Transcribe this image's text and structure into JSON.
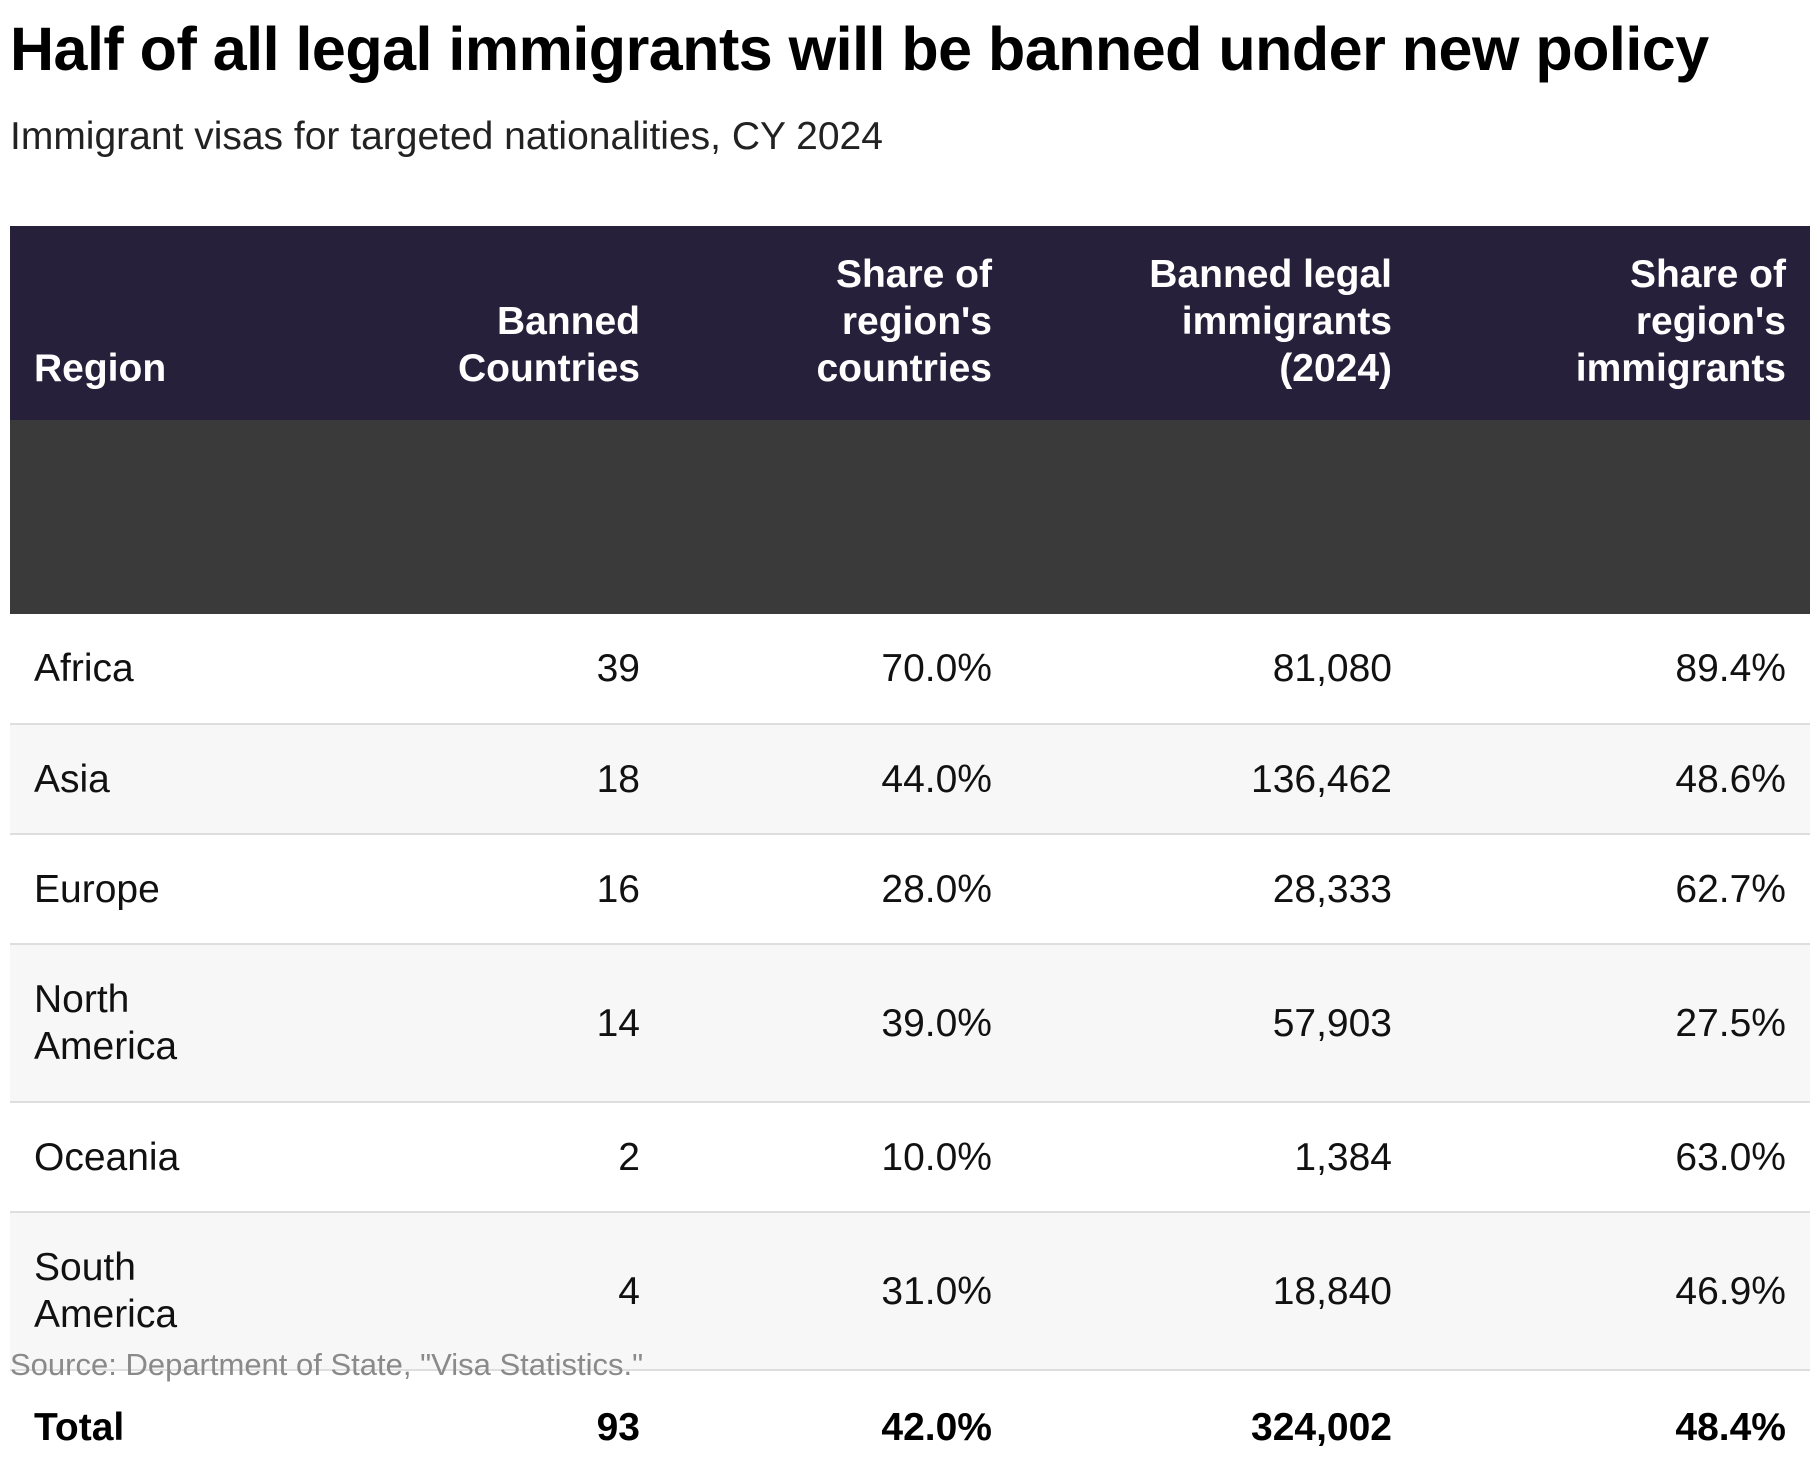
{
  "chart_data": {
    "type": "table",
    "title": "Half of all legal immigrants will be banned under new policy",
    "subtitle": "Immigrant visas for targeted nationalities, CY 2024",
    "columns": [
      "Region",
      "Banned Countries",
      "Share of region's countries",
      "Banned legal immigrants (2024)",
      "Share of region's immigrants"
    ],
    "rows": [
      {
        "region": "Africa",
        "banned_countries": "39",
        "share_countries": "70.0%",
        "banned_immigrants": "81,080",
        "share_immigrants": "89.4%"
      },
      {
        "region": "Asia",
        "banned_countries": "18",
        "share_countries": "44.0%",
        "banned_immigrants": "136,462",
        "share_immigrants": "48.6%"
      },
      {
        "region": "Europe",
        "banned_countries": "16",
        "share_countries": "28.0%",
        "banned_immigrants": "28,333",
        "share_immigrants": "62.7%"
      },
      {
        "region": "North America",
        "banned_countries": "14",
        "share_countries": "39.0%",
        "banned_immigrants": "57,903",
        "share_immigrants": "27.5%"
      },
      {
        "region": "Oceania",
        "banned_countries": "2",
        "share_countries": "10.0%",
        "banned_immigrants": "1,384",
        "share_immigrants": "63.0%"
      },
      {
        "region": "South America",
        "banned_countries": "4",
        "share_countries": "31.0%",
        "banned_immigrants": "18,840",
        "share_immigrants": "46.9%"
      }
    ],
    "total": {
      "region": "Total",
      "banned_countries": "93",
      "share_countries": "42.0%",
      "banned_immigrants": "324,002",
      "share_immigrants": "48.4%"
    },
    "source": "Source: Department of State, \"Visa Statistics.\""
  },
  "colors": {
    "header_background": "#26203a",
    "header_text": "#ffffff",
    "row_stripe": "#f7f7f7",
    "source_text": "#8a8a8a"
  }
}
